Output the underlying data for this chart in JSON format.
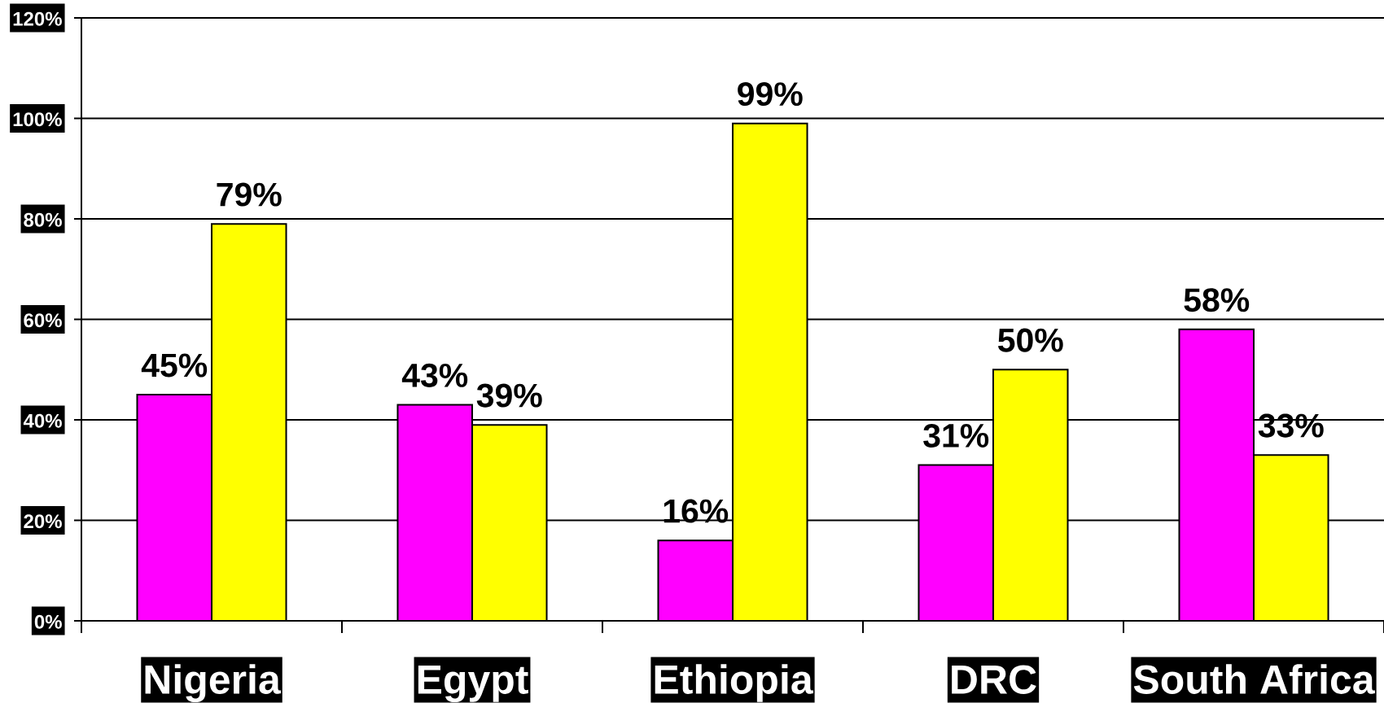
{
  "chart_data": {
    "type": "bar",
    "categories": [
      "Nigeria",
      "Egypt",
      "Ethiopia",
      "DRC",
      "South Africa"
    ],
    "series": [
      {
        "color": "#ff00ff",
        "values": [
          45,
          43,
          16,
          31,
          58
        ],
        "value_labels": [
          "45%",
          "43%",
          "16%",
          "31%",
          "58%"
        ]
      },
      {
        "color": "#ffff00",
        "values": [
          79,
          39,
          99,
          50,
          33
        ],
        "value_labels": [
          "79%",
          "39%",
          "99%",
          "50%",
          "33%"
        ]
      }
    ],
    "ylim": [
      0,
      120
    ],
    "yticks": [
      {
        "value": 0,
        "label": "0%"
      },
      {
        "value": 20,
        "label": "20%"
      },
      {
        "value": 40,
        "label": "40%"
      },
      {
        "value": 60,
        "label": "60%"
      },
      {
        "value": 80,
        "label": "80%"
      },
      {
        "value": 100,
        "label": "100%"
      },
      {
        "value": 120,
        "label": "120%"
      }
    ],
    "grid": "y"
  }
}
